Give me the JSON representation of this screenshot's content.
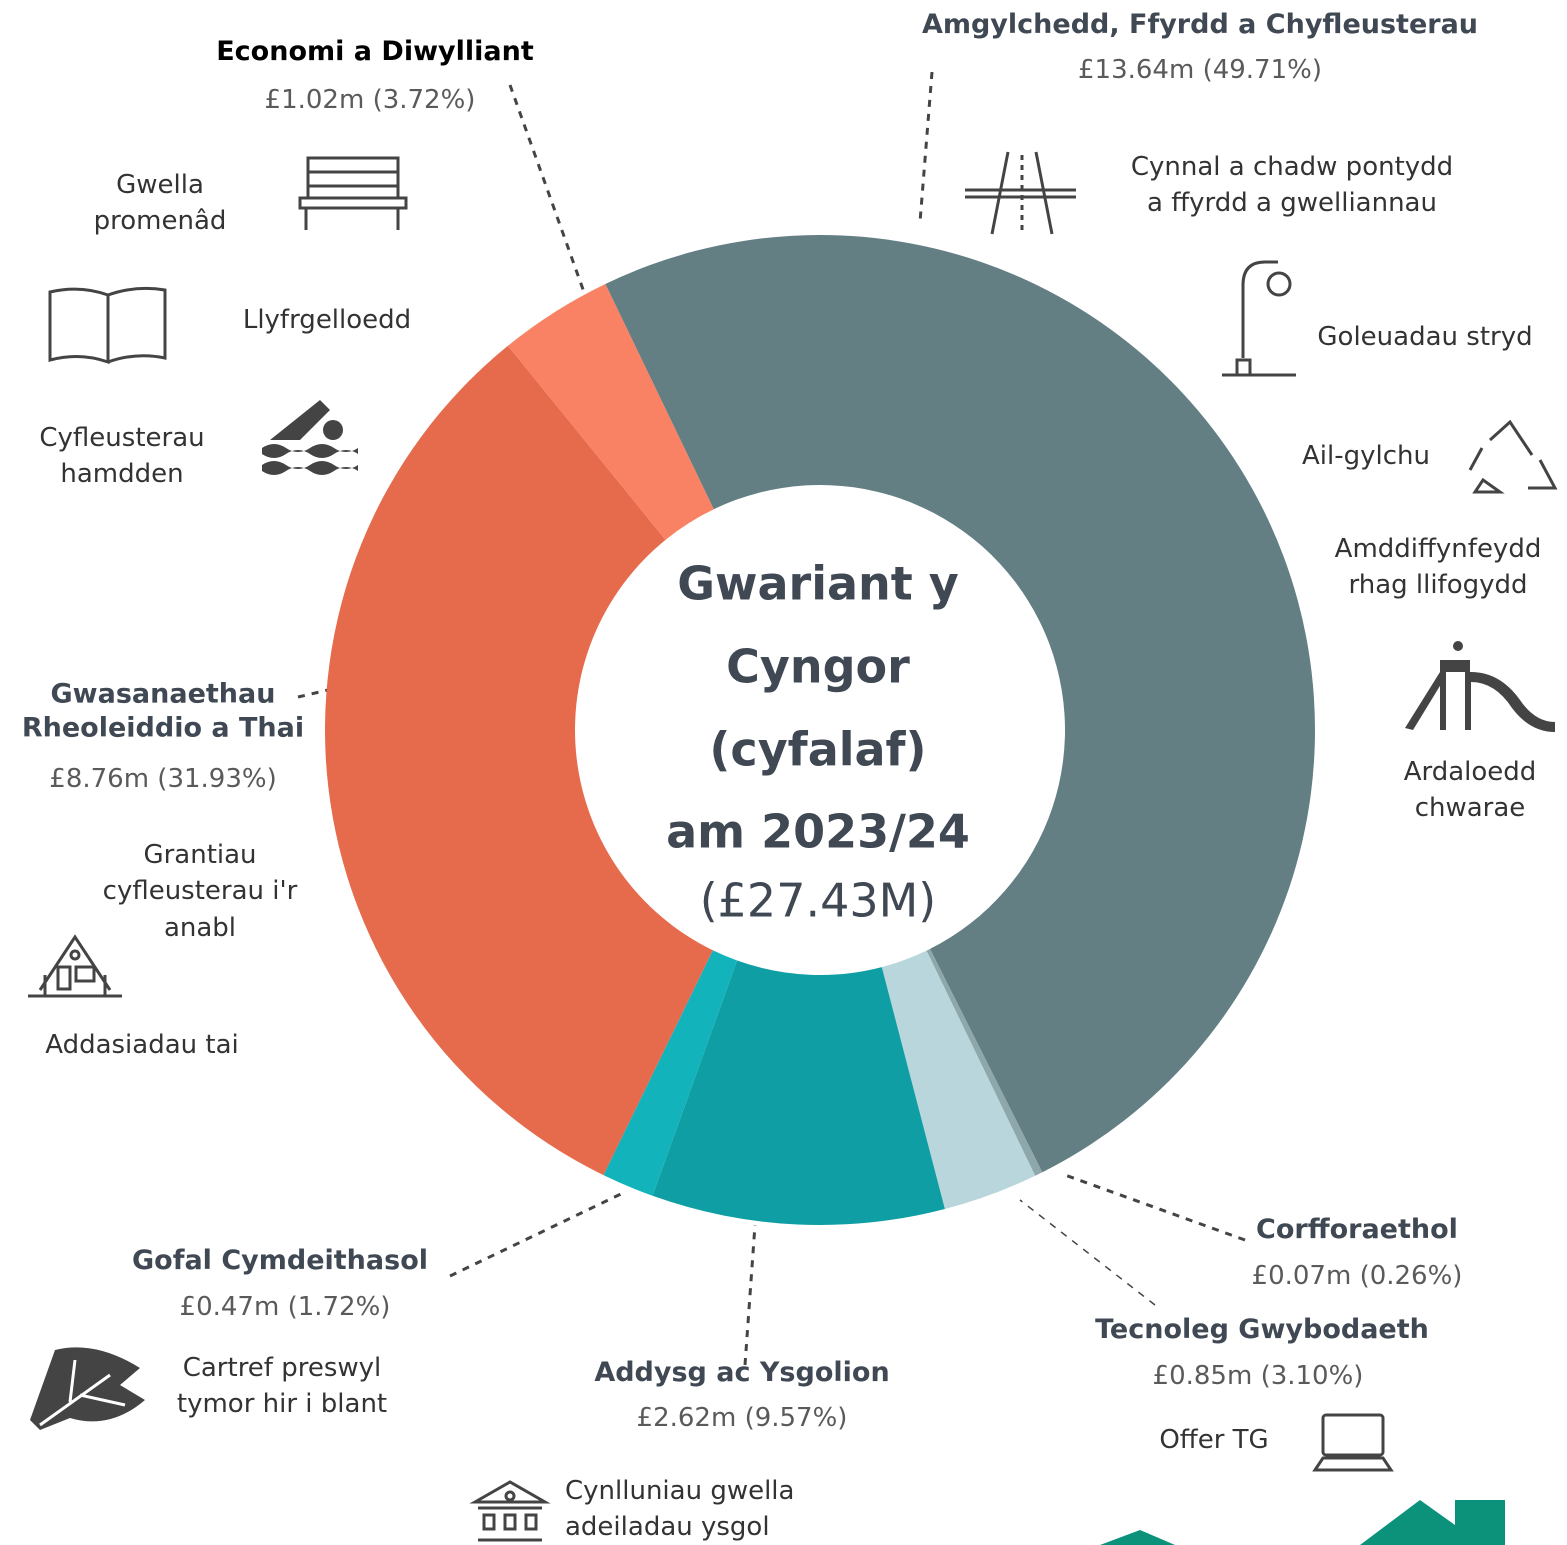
{
  "chart_data": {
    "type": "donut",
    "title_lines": [
      "Gwariant y",
      "Cyngor",
      "(cyfalaf)",
      "am 2023/24"
    ],
    "subtitle": "(£27.43M)",
    "categories": [
      "Amgylchedd, Ffyrdd a Chyfleusterau",
      "Corfforaethol",
      "Tecnoleg Gwybodaeth",
      "Addysg ac Ysgolion",
      "Gofal Cymdeithasol",
      "Gwasanaethau Rheoleiddio a Thai",
      "Economi a Diwylliant"
    ],
    "values": [
      13.64,
      0.07,
      0.85,
      2.62,
      0.47,
      8.76,
      1.02
    ],
    "value_labels": [
      "£13.64m (49.71%)",
      "£0.07m (0.26%)",
      "£0.85m (3.10%)",
      "£2.62m (9.57%)",
      "£0.47m (1.72%)",
      "£8.76m (31.93%)",
      "£1.02m (3.72%)"
    ],
    "colors": [
      "#637f84",
      "#8ea7aa",
      "#b8d6db",
      "#0f9ea3",
      "#12b3bb",
      "#e56b4c",
      "#f98264"
    ],
    "annotations": [
      [
        "Gwella",
        "promenâd"
      ],
      [
        "Llyfrgelloedd"
      ],
      [
        "Cyfleusterau",
        "hamdden"
      ],
      [
        "Cynnal a chadw pontydd",
        "a ffyrdd a gwelliannau"
      ],
      [
        "Goleuadau stryd"
      ],
      [
        "Ail-gylchu"
      ],
      [
        "Amddiffynfeydd",
        "rhag llifogydd"
      ],
      [
        "Ardaloedd",
        "chwarae"
      ],
      [
        "Grantiau",
        "cyfleusterau i'r",
        "anabl"
      ],
      [
        "Addasiadau tai"
      ],
      [
        "Cartref preswyl",
        "tymor hir i blant"
      ],
      [
        "Cynlluniau gwella",
        "adeiladau ysgol"
      ],
      [
        "Offer TG"
      ]
    ]
  }
}
